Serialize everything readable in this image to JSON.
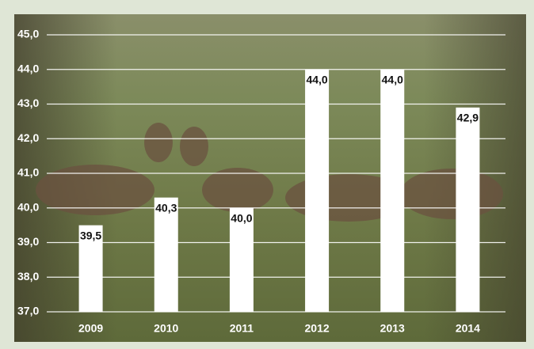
{
  "chart_data": {
    "type": "bar",
    "categories": [
      "2009",
      "2010",
      "2011",
      "2012",
      "2013",
      "2014"
    ],
    "values": [
      39.5,
      40.3,
      40.0,
      44.0,
      44.0,
      42.9
    ],
    "value_labels": [
      "39,5",
      "40,3",
      "40,0",
      "44,0",
      "44,0",
      "42,9"
    ],
    "color": "#ffffff",
    "ylim": [
      37,
      45
    ],
    "yticks": [
      {
        "value": 37,
        "label": "37,0"
      },
      {
        "value": 38,
        "label": "38,0"
      },
      {
        "value": 39,
        "label": "39,0"
      },
      {
        "value": 40,
        "label": "40,0"
      },
      {
        "value": 41,
        "label": "41,0"
      },
      {
        "value": 42,
        "label": "42,0"
      },
      {
        "value": 43,
        "label": "43,0"
      },
      {
        "value": 44,
        "label": "44,0"
      },
      {
        "value": 45,
        "label": "45,0"
      }
    ],
    "grid": true
  }
}
